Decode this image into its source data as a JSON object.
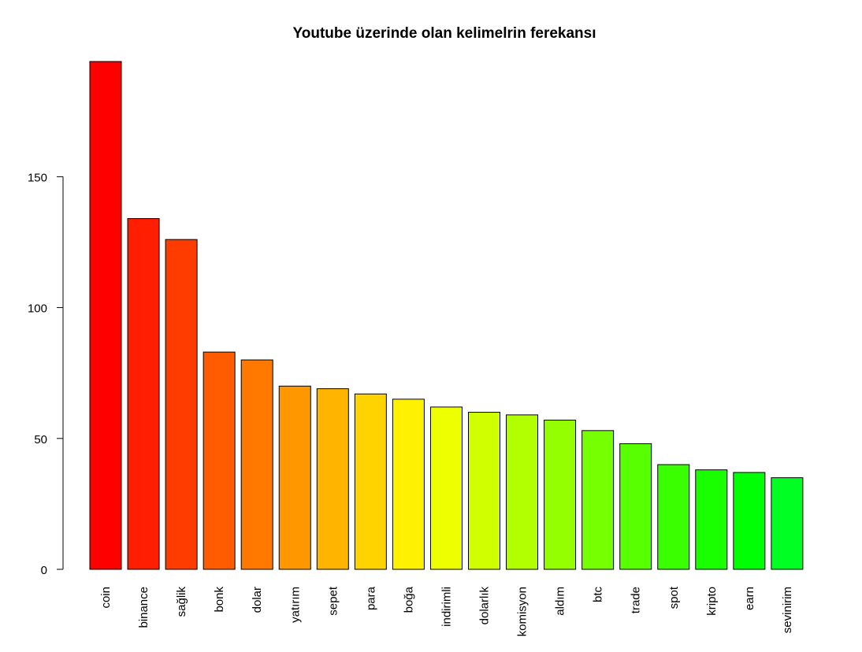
{
  "chart_data": {
    "type": "bar",
    "title": "Youtube üzerinde olan kelimelrin ferekansı",
    "xlabel": "",
    "ylabel": "",
    "categories": [
      "coin",
      "binance",
      "sağlik",
      "bonk",
      "dolar",
      "yatırım",
      "sepet",
      "para",
      "boğa",
      "indirimli",
      "dolarlık",
      "komisyon",
      "aldım",
      "btc",
      "trade",
      "spot",
      "kripto",
      "earn",
      "sevinirim"
    ],
    "values": [
      194,
      134,
      126,
      83,
      80,
      70,
      69,
      67,
      65,
      62,
      60,
      59,
      57,
      53,
      48,
      40,
      38,
      37,
      35
    ],
    "colors": [
      "#FF0000",
      "#FF1E00",
      "#FF3C00",
      "#FF5B00",
      "#FF7900",
      "#FF9700",
      "#FFB500",
      "#FFD300",
      "#FFF200",
      "#EEFF00",
      "#D0FF00",
      "#B1FF00",
      "#93FF00",
      "#75FF00",
      "#57FF00",
      "#39FF00",
      "#1AFF00",
      "#00FF04",
      "#00FF22"
    ],
    "y_ticks": [
      0,
      50,
      100,
      150
    ],
    "y_tick_labels": [
      "0",
      "50",
      "100",
      "150"
    ],
    "ylim": [
      0,
      194
    ],
    "grid": false,
    "legend": "none"
  }
}
